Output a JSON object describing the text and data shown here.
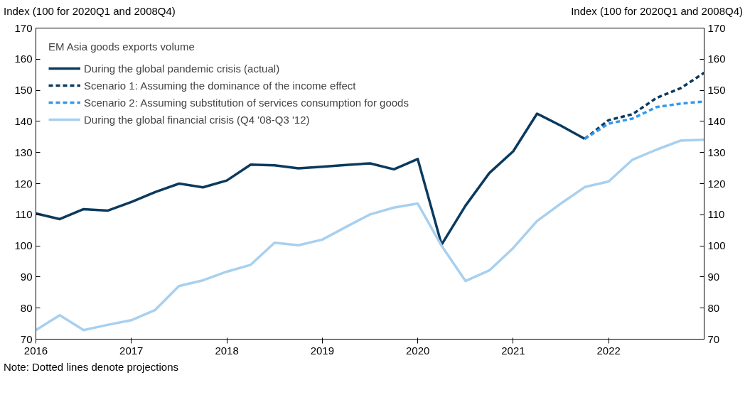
{
  "chart_data": {
    "type": "line",
    "ylabel": "Index (100 for 2020Q1 and 2008Q4)",
    "y2label": "Index (100 for 2020Q1 and 2008Q4)",
    "legend_title": "EM Asia goods exports volume",
    "legend": "top left",
    "grid": false,
    "xlim": [
      2016,
      2023
    ],
    "xticks": [
      2016,
      2017,
      2018,
      2019,
      2020,
      2021,
      2022
    ],
    "ylim": [
      70,
      170
    ],
    "yticks": [
      70,
      80,
      90,
      100,
      110,
      120,
      130,
      140,
      150,
      160,
      170
    ],
    "y2lim": [
      70,
      170
    ],
    "y2ticks": [
      70,
      80,
      90,
      100,
      110,
      120,
      130,
      140,
      150,
      160,
      170
    ],
    "annotations": [
      "Note: Dotted lines denote projections"
    ],
    "series": [
      {
        "name": "During the global pandemic crisis (actual)",
        "color": "#0b3a5e",
        "line_style": "solid",
        "x": [
          2016,
          2016.25,
          2016.5,
          2016.75,
          2017,
          2017.25,
          2017.5,
          2017.75,
          2018,
          2018.25,
          2018.5,
          2018.75,
          2019,
          2019.25,
          2019.5,
          2019.75,
          2020,
          2020.25,
          2020.5,
          2020.75,
          2021,
          2021.25,
          2021.5,
          2021.75
        ],
        "values": [
          110.4,
          108.6,
          111.8,
          111.3,
          114.1,
          117.3,
          120,
          118.8,
          121,
          126.1,
          125.9,
          124.9,
          125.4,
          126,
          126.5,
          124.6,
          127.9,
          100.4,
          112.9,
          123.4,
          130.4,
          142.5,
          138.6,
          134.4
        ]
      },
      {
        "name": "Scenario 1: Assuming the dominance of the income effect",
        "color": "#0b3a5e",
        "line_style": "dashed",
        "x": [
          2021.75,
          2022,
          2022.25,
          2022.5,
          2022.75,
          2023
        ],
        "values": [
          134.4,
          140.4,
          142.3,
          147.5,
          150.6,
          155.6
        ]
      },
      {
        "name": "Scenario 2: Assuming substitution of services consumption for goods",
        "color": "#3399ee",
        "line_style": "dashed",
        "x": [
          2021.75,
          2022,
          2022.25,
          2022.5,
          2022.75,
          2023
        ],
        "values": [
          134.4,
          139.3,
          140.9,
          144.6,
          145.7,
          146.4
        ]
      },
      {
        "name": "During the global financial crisis (Q4 '08-Q3 '12)",
        "color": "#a8d0ef",
        "line_style": "solid",
        "x": [
          2016,
          2016.25,
          2016.5,
          2016.75,
          2017,
          2017.25,
          2017.5,
          2017.75,
          2018,
          2018.25,
          2018.5,
          2018.75,
          2019,
          2019.25,
          2019.5,
          2019.75,
          2020,
          2020.25,
          2020.5,
          2020.75,
          2021,
          2021.25,
          2021.5,
          2021.75,
          2022,
          2022.25,
          2022.5,
          2022.75,
          2023
        ],
        "values": [
          72.9,
          77.7,
          72.9,
          74.6,
          76.1,
          79.4,
          87.1,
          88.9,
          91.7,
          93.9,
          101,
          100.2,
          102,
          106.1,
          110.1,
          112.3,
          113.6,
          100,
          88.7,
          92.1,
          99.3,
          108,
          113.6,
          118.9,
          120.7,
          127.7,
          130.9,
          133.8,
          134.1
        ]
      }
    ]
  }
}
